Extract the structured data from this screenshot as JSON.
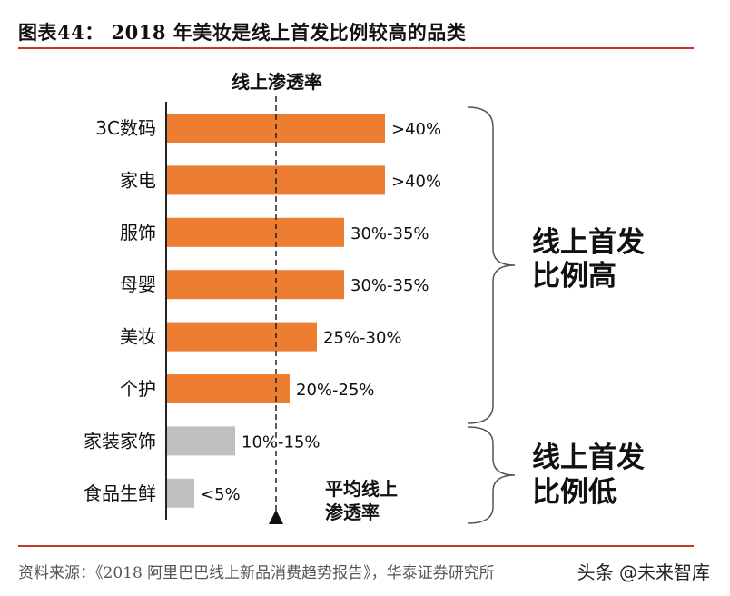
{
  "header": {
    "title": "图表44： 2018 年美妆是线上首发比例较高的品类"
  },
  "source": "资料来源：《2018 阿里巴巴线上新品消费趋势报告》，华泰证券研究所",
  "watermark": "头条 @未来智库",
  "colors": {
    "high": "#ed7d31",
    "low": "#bfbfbf",
    "rule": "#c0392b"
  },
  "chart_data": {
    "type": "bar",
    "orientation": "horizontal",
    "title": "线上渗透率",
    "categories": [
      "3C数码",
      "家电",
      "服饰",
      "母婴",
      "美妆",
      "个护",
      "家装家饰",
      "食品生鲜"
    ],
    "values": [
      40,
      40,
      32.5,
      32.5,
      27.5,
      22.5,
      12.5,
      5
    ],
    "value_labels": [
      ">40%",
      ">40%",
      "30%-35%",
      "30%-35%",
      "25%-30%",
      "20%-25%",
      "10%-15%",
      "<5%"
    ],
    "group": [
      "high",
      "high",
      "high",
      "high",
      "high",
      "high",
      "low",
      "low"
    ],
    "average_line_value": 20,
    "average_label_line1": "平均线上",
    "average_label_line2": "渗透率",
    "groups": [
      {
        "key": "high",
        "line1": "线上首发",
        "line2": "比例高"
      },
      {
        "key": "low",
        "line1": "线上首发",
        "line2": "比例低"
      }
    ]
  }
}
